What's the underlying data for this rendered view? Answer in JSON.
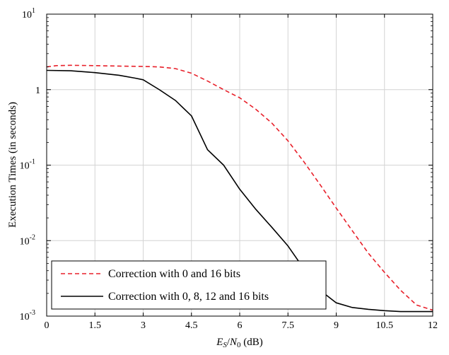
{
  "chart_data": {
    "type": "line",
    "xlabel_parts": {
      "E": "E",
      "S": "S",
      "slash": "/",
      "N": "N",
      "zero": "0",
      "unit": " (dB)"
    },
    "ylabel": "Execution Times (in seconds)",
    "xlim": [
      0,
      12
    ],
    "ylim": [
      0.001,
      10
    ],
    "yscale": "log",
    "grid": true,
    "legend_position": "bottom-left",
    "x_ticks": [
      {
        "value": 0,
        "label": "0"
      },
      {
        "value": 1.5,
        "label": "1.5"
      },
      {
        "value": 3,
        "label": "3"
      },
      {
        "value": 4.5,
        "label": "4.5"
      },
      {
        "value": 6,
        "label": "6"
      },
      {
        "value": 7.5,
        "label": "7.5"
      },
      {
        "value": 9,
        "label": "9"
      },
      {
        "value": 10.5,
        "label": "10.5"
      },
      {
        "value": 12,
        "label": "12"
      }
    ],
    "y_ticks": [
      {
        "value": 0.001,
        "base": "10",
        "exp": "-3"
      },
      {
        "value": 0.01,
        "base": "10",
        "exp": "-2"
      },
      {
        "value": 0.1,
        "base": "10",
        "exp": "-1"
      },
      {
        "value": 1,
        "base": "1",
        "exp": ""
      },
      {
        "value": 10,
        "base": "10",
        "exp": "1"
      }
    ],
    "series": [
      {
        "name": "Correction with 0 and 16 bits",
        "color": "#e8202a",
        "dash": "dashed",
        "x": [
          0,
          0.3,
          0.75,
          1.5,
          2.25,
          3,
          3.5,
          4,
          4.5,
          5,
          5.5,
          6,
          6.5,
          7,
          7.5,
          8,
          8.5,
          9,
          9.5,
          10,
          10.5,
          11,
          11.5,
          12
        ],
        "y": [
          2.0,
          2.08,
          2.1,
          2.08,
          2.05,
          2.03,
          2.0,
          1.9,
          1.65,
          1.3,
          1.0,
          0.78,
          0.55,
          0.36,
          0.21,
          0.11,
          0.055,
          0.027,
          0.0135,
          0.0068,
          0.0038,
          0.0022,
          0.0014,
          0.0012
        ]
      },
      {
        "name": "Correction with 0, 8, 12 and 16 bits",
        "color": "#000000",
        "dash": "solid",
        "x": [
          0,
          0.75,
          1.5,
          2.25,
          2.75,
          3,
          3.5,
          4,
          4.5,
          5,
          5.5,
          6,
          6.5,
          7,
          7.5,
          8,
          8.5,
          9,
          9.5,
          10,
          10.5,
          11,
          11.5,
          12
        ],
        "y": [
          1.8,
          1.78,
          1.68,
          1.55,
          1.42,
          1.35,
          1.0,
          0.72,
          0.45,
          0.16,
          0.1,
          0.048,
          0.026,
          0.015,
          0.0085,
          0.0042,
          0.0022,
          0.0015,
          0.0013,
          0.00123,
          0.00118,
          0.00115,
          0.00115,
          0.00115
        ]
      }
    ]
  }
}
